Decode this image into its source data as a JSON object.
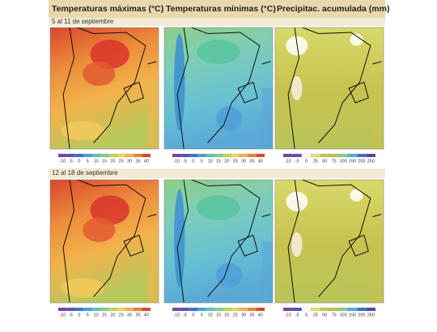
{
  "columns": [
    "Temperaturas máximas (°C)",
    "Temperaturas mínimas (°C)",
    "Precipitac. acumulada (mm)"
  ],
  "periods": [
    "5 al 11 de septiembre",
    "12 al 18 de septiembre"
  ],
  "temp_scale_labels": [
    -10,
    -5,
    0,
    5,
    10,
    15,
    20,
    25,
    30,
    35,
    40
  ],
  "precip_scale_labels": [
    -10,
    -5,
    0,
    25,
    50,
    75,
    100,
    150,
    200,
    250
  ]
}
